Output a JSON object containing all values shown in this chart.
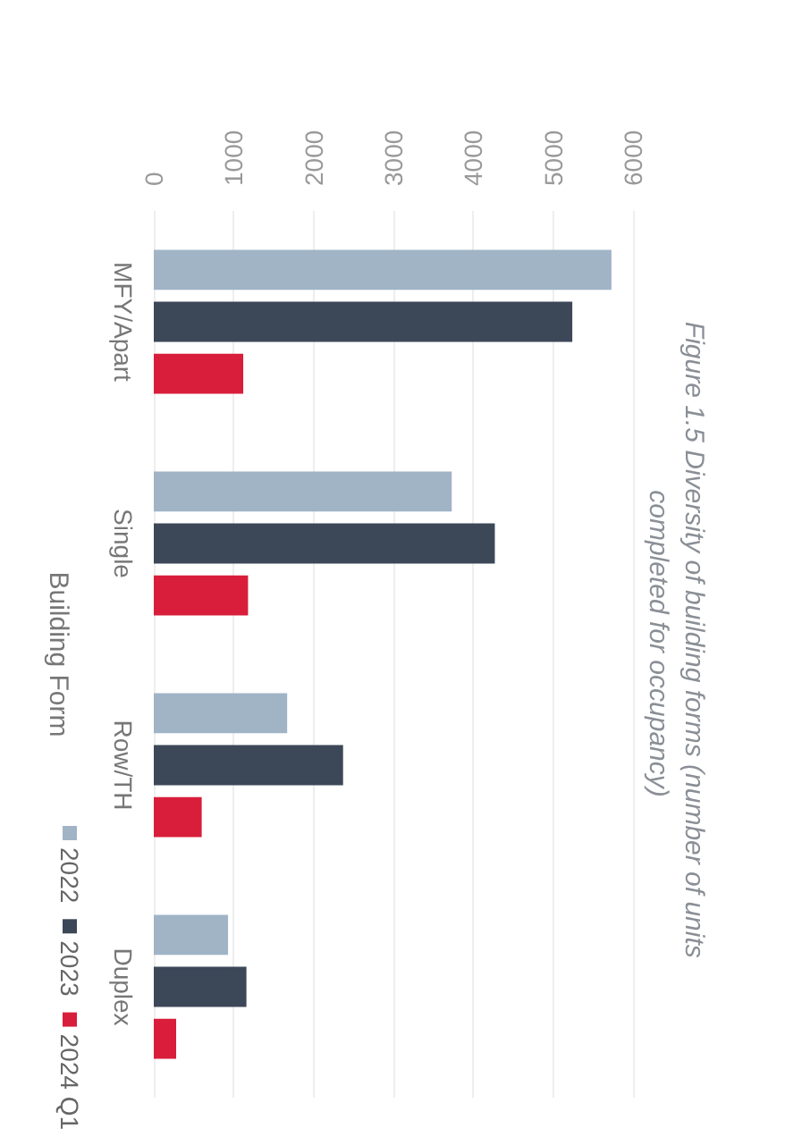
{
  "chart_data": {
    "type": "bar",
    "orientation": "horizontal",
    "title": "Figure 1.5 Diversity of building forms (number of units completed for occupancy)",
    "ylabel": "Building Form",
    "categories": [
      "MFY/Apart",
      "Single",
      "Row/TH",
      "Duplex"
    ],
    "series": [
      {
        "name": "2022",
        "color": "#a0b4c6",
        "values": [
          5730,
          3730,
          1670,
          930
        ]
      },
      {
        "name": "2023",
        "color": "#3c4858",
        "values": [
          5240,
          4270,
          2370,
          1160
        ]
      },
      {
        "name": "2024 Q1",
        "color": "#d81e3a",
        "values": [
          1120,
          1180,
          600,
          280
        ]
      }
    ],
    "xlim": [
      0,
      6000
    ],
    "xticks": [
      0,
      1000,
      2000,
      3000,
      4000,
      5000,
      6000
    ],
    "grid": "x",
    "legend": "bottom left"
  }
}
